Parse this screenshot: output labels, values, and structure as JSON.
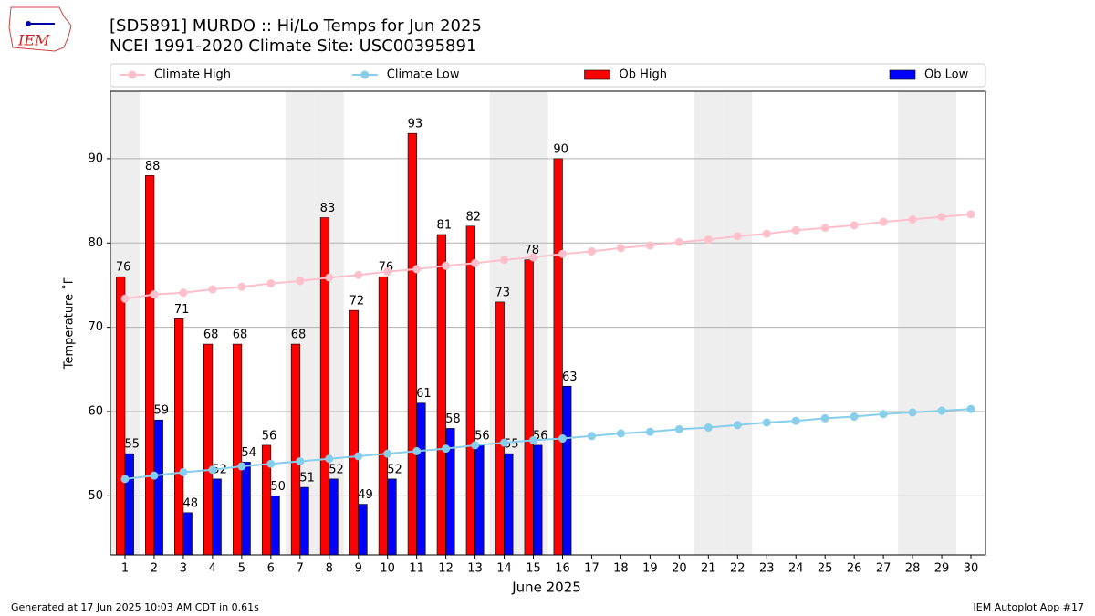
{
  "chart_data": {
    "type": "bar",
    "title": "[SD5891] MURDO :: Hi/Lo Temps for Jun 2025",
    "subtitle": "NCEI 1991-2020 Climate Site: USC00395891",
    "x_label": "June 2025",
    "y_label": "Temperature ˚F",
    "x": [
      1,
      2,
      3,
      4,
      5,
      6,
      7,
      8,
      9,
      10,
      11,
      12,
      13,
      14,
      15,
      16,
      17,
      18,
      19,
      20,
      21,
      22,
      23,
      24,
      25,
      26,
      27,
      28,
      29,
      30
    ],
    "xlim": [
      0.5,
      30.5
    ],
    "ylim": [
      43,
      98
    ],
    "yticks": [
      50,
      60,
      70,
      80,
      90
    ],
    "grid": true,
    "shaded_days": [
      1,
      7,
      8,
      14,
      15,
      21,
      22,
      28,
      29
    ],
    "legend": "upper center outside",
    "series": [
      {
        "name": "Climate High",
        "type": "line",
        "color": "#ffc0cb",
        "values": [
          73.4,
          73.9,
          74.1,
          74.5,
          74.8,
          75.2,
          75.5,
          75.9,
          76.2,
          76.6,
          76.9,
          77.3,
          77.6,
          78.0,
          78.3,
          78.7,
          79.0,
          79.4,
          79.7,
          80.1,
          80.4,
          80.8,
          81.1,
          81.5,
          81.8,
          82.1,
          82.5,
          82.8,
          83.1,
          83.4
        ]
      },
      {
        "name": "Climate Low",
        "type": "line",
        "color": "#87ceeb",
        "values": [
          52.0,
          52.4,
          52.8,
          53.1,
          53.5,
          53.8,
          54.1,
          54.4,
          54.7,
          55.0,
          55.3,
          55.6,
          56.0,
          56.3,
          56.6,
          56.8,
          57.1,
          57.4,
          57.6,
          57.9,
          58.1,
          58.4,
          58.7,
          58.9,
          59.2,
          59.4,
          59.7,
          59.9,
          60.1,
          60.3
        ]
      },
      {
        "name": "Ob High",
        "type": "bar",
        "color": "#ff0000",
        "values": [
          76,
          88,
          71,
          68,
          68,
          56,
          68,
          83,
          72,
          76,
          93,
          81,
          82,
          73,
          78,
          90,
          null,
          null,
          null,
          null,
          null,
          null,
          null,
          null,
          null,
          null,
          null,
          null,
          null,
          null
        ]
      },
      {
        "name": "Ob Low",
        "type": "bar",
        "color": "#0000ff",
        "values": [
          55,
          59,
          48,
          52,
          54,
          50,
          51,
          52,
          49,
          52,
          61,
          58,
          56,
          55,
          56,
          63,
          null,
          null,
          null,
          null,
          null,
          null,
          null,
          null,
          null,
          null,
          null,
          null,
          null,
          null
        ]
      }
    ]
  },
  "logo": "IEM",
  "footer_left": "Generated at 17 Jun 2025 10:03 AM CDT in 0.61s",
  "footer_right": "IEM Autoplot App #17"
}
